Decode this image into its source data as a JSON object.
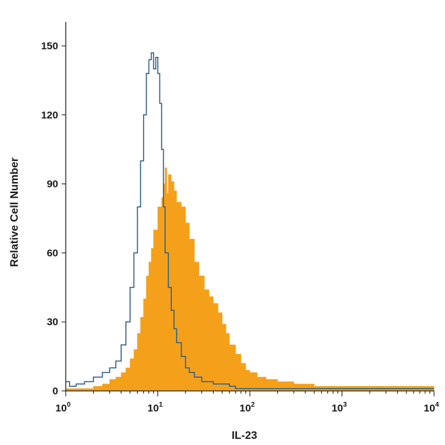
{
  "chart_data": {
    "type": "area",
    "xlabel": "IL-23",
    "ylabel": "Relative Cell Number",
    "xscale": "log",
    "xlim": [
      1,
      10000
    ],
    "ylim": [
      0,
      160
    ],
    "yticks": [
      "0",
      "30",
      "60",
      "90",
      "120",
      "150"
    ],
    "ytick_values": [
      0,
      30,
      60,
      90,
      120,
      150
    ],
    "xticks": [
      {
        "base": "10",
        "exp": "0",
        "value": 1
      },
      {
        "base": "10",
        "exp": "1",
        "value": 10
      },
      {
        "base": "10",
        "exp": "2",
        "value": 100
      },
      {
        "base": "10",
        "exp": "3",
        "value": 1000
      },
      {
        "base": "10",
        "exp": "4",
        "value": 10000
      }
    ],
    "colors": {
      "filled": "#f5a01a",
      "outline": "#2e5f86",
      "axis": "#222222"
    },
    "series": [
      {
        "style": "filled-histogram",
        "x": [
          1,
          1.5,
          2,
          2.5,
          3,
          3.5,
          4,
          4.5,
          5,
          5.5,
          6,
          6.5,
          7,
          7.5,
          8,
          8.5,
          9,
          10,
          11,
          11.5,
          12,
          12.5,
          13,
          14,
          15,
          16,
          18,
          20,
          22,
          25,
          28,
          32,
          36,
          40,
          45,
          50,
          55,
          60,
          70,
          80,
          90,
          100,
          120,
          150,
          200,
          300,
          500,
          1000,
          2000,
          5000,
          10000
        ],
        "y": [
          1,
          1,
          2,
          3,
          5,
          6,
          8,
          10,
          14,
          18,
          25,
          32,
          40,
          50,
          56,
          62,
          70,
          80,
          84,
          90,
          97,
          86,
          94,
          91,
          87,
          82,
          80,
          73,
          66,
          56,
          50,
          44,
          41,
          38,
          34,
          29,
          25,
          20,
          16,
          12,
          9,
          8,
          6,
          5,
          4,
          3,
          2,
          2,
          2,
          2,
          2
        ]
      },
      {
        "style": "outline-histogram",
        "x": [
          1,
          1.1,
          1.3,
          1.6,
          2,
          2.5,
          3,
          3.5,
          4,
          4.5,
          5,
          5.5,
          6,
          6.5,
          7,
          7.5,
          8,
          8.5,
          9,
          9.5,
          10,
          10.5,
          11,
          11.5,
          12,
          13,
          14,
          15,
          16,
          18,
          20,
          22,
          25,
          30,
          35,
          40,
          50,
          60,
          70,
          100,
          200,
          1000,
          10000
        ],
        "y": [
          4,
          2,
          3,
          4,
          6,
          8,
          10,
          13,
          20,
          30,
          45,
          60,
          80,
          100,
          120,
          138,
          144,
          147,
          140,
          145,
          138,
          125,
          105,
          80,
          60,
          45,
          35,
          27,
          21,
          15,
          10,
          8,
          6,
          4,
          4,
          3,
          3,
          2,
          1,
          1,
          1,
          1,
          1
        ]
      }
    ]
  }
}
